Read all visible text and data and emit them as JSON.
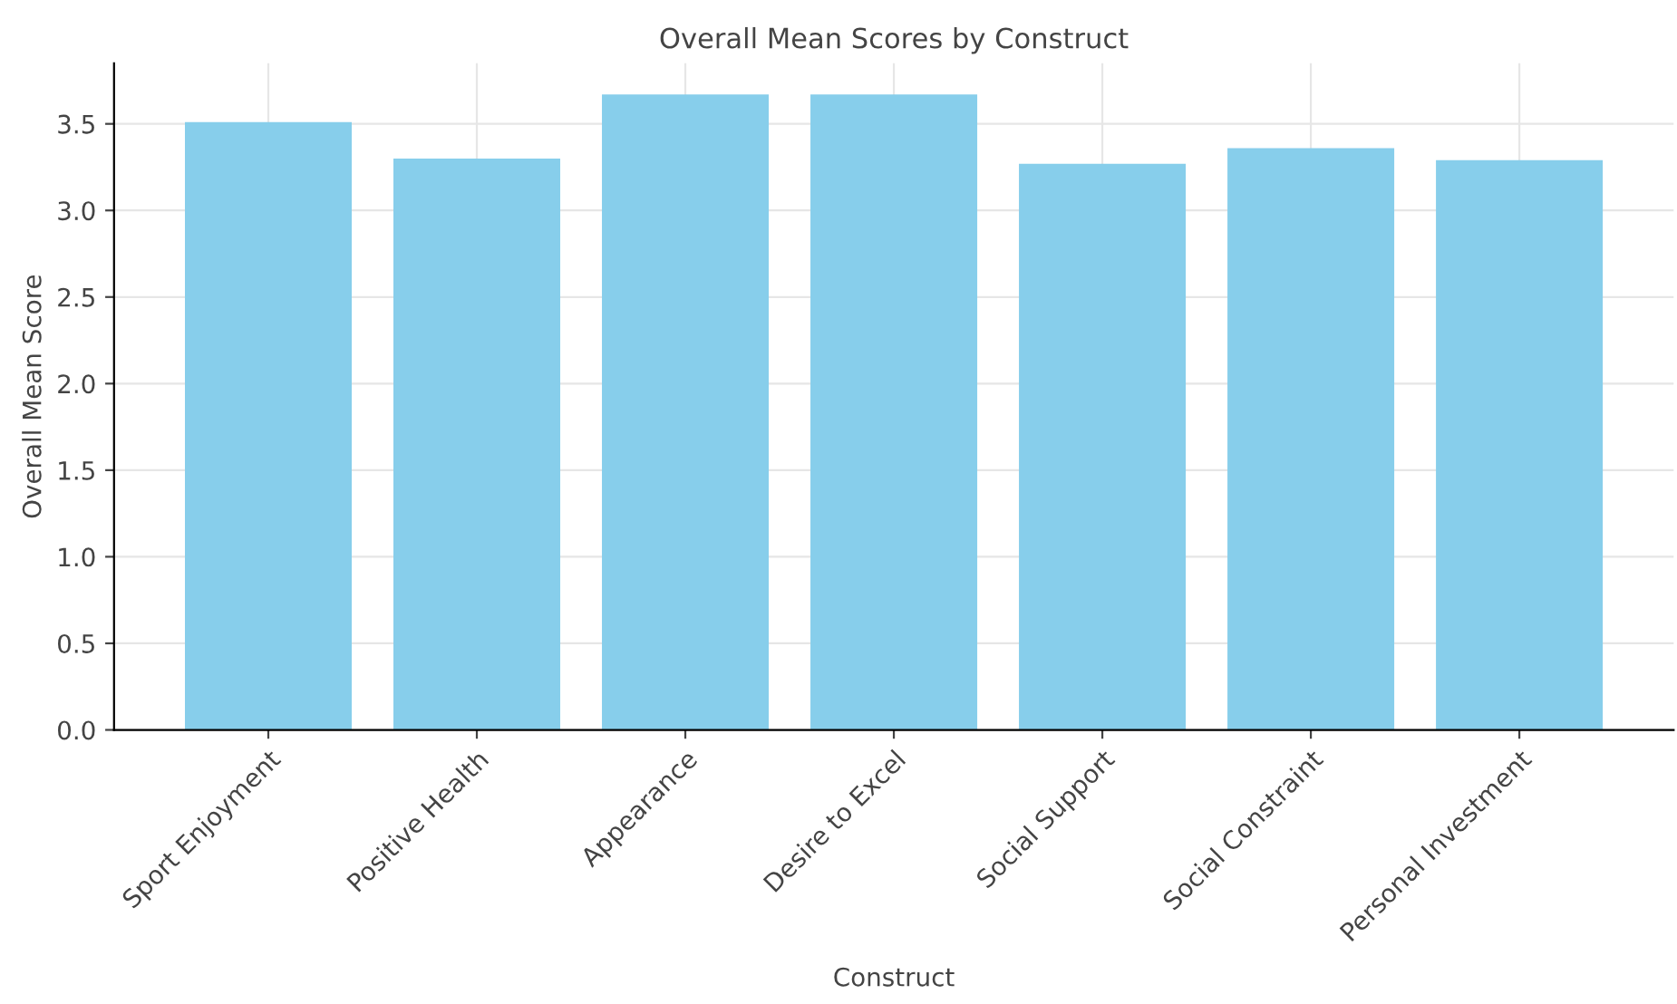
{
  "chart_data": {
    "type": "bar",
    "title": "Overall Mean Scores by Construct",
    "xlabel": "Construct",
    "ylabel": "Overall Mean Score",
    "categories": [
      "Sport Enjoyment",
      "Positive Health",
      "Appearance",
      "Desire to Excel",
      "Social Support",
      "Social Constraint",
      "Personal Investment"
    ],
    "values": [
      3.51,
      3.3,
      3.67,
      3.67,
      3.27,
      3.36,
      3.29
    ],
    "color": "#87ceeb",
    "ylim": [
      0,
      3.85
    ],
    "yticks": [
      {
        "value": 0,
        "label": "0.0"
      },
      {
        "value": 0.5,
        "label": "0.5"
      },
      {
        "value": 1,
        "label": "1.0"
      },
      {
        "value": 1.5,
        "label": "1.5"
      },
      {
        "value": 2,
        "label": "2.0"
      },
      {
        "value": 2.5,
        "label": "2.5"
      },
      {
        "value": 3,
        "label": "3.0"
      },
      {
        "value": 3.5,
        "label": "3.5"
      }
    ],
    "grid": true
  }
}
